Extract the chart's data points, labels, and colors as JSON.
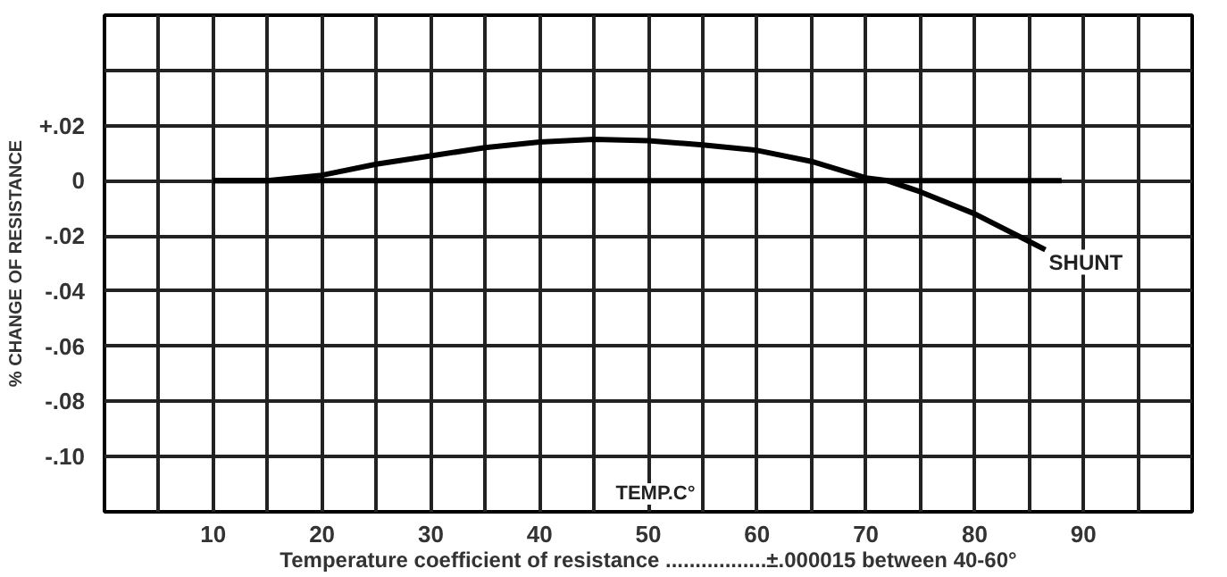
{
  "chart_data": {
    "type": "line",
    "xlabel": "Temperature coefficient of resistance .................±.000015 between 40-60°",
    "ylabel": "% CHANGE OF RESISTANCE",
    "xlim": [
      0,
      100
    ],
    "ylim": [
      -0.12,
      0.06
    ],
    "xticks": [
      {
        "value": 0,
        "label": null
      },
      {
        "value": 5,
        "label": null
      },
      10,
      {
        "value": 15,
        "label": null
      },
      20,
      {
        "value": 25,
        "label": null
      },
      30,
      {
        "value": 35,
        "label": null
      },
      40,
      {
        "value": 45,
        "label": null
      },
      50,
      {
        "value": 55,
        "label": null
      },
      60,
      {
        "value": 65,
        "label": null
      },
      70,
      {
        "value": 75,
        "label": null
      },
      80,
      {
        "value": 85,
        "label": null
      },
      90,
      {
        "value": 95,
        "label": null
      },
      {
        "value": 100,
        "label": null
      }
    ],
    "yticks": [
      {
        "value": -0.12,
        "label": null
      },
      {
        "value": -0.1,
        "label": "-.10"
      },
      {
        "value": -0.08,
        "label": "-.08"
      },
      {
        "value": -0.06,
        "label": "-.06"
      },
      {
        "value": -0.04,
        "label": "-.04"
      },
      {
        "value": -0.02,
        "label": "-.02"
      },
      0,
      {
        "value": 0.02,
        "label": "+.02"
      },
      {
        "value": 0.04,
        "label": null
      },
      {
        "value": 0.06,
        "label": null
      }
    ],
    "grid": true,
    "line_style": "solid",
    "marker": "none",
    "series": [
      {
        "color": "#000000",
        "x": [
          10,
          15,
          20,
          25,
          30,
          35,
          40,
          45,
          50,
          55,
          60,
          65,
          70,
          72,
          75,
          80,
          85,
          86.5
        ],
        "values": [
          0,
          0,
          0.002,
          0.006,
          0.009,
          0.012,
          0.014,
          0.015,
          0.0145,
          0.013,
          0.011,
          0.007,
          0.001,
          0,
          -0.004,
          -0.012,
          -0.022,
          -0.025
        ]
      },
      {
        "color": "#000000",
        "x": [
          10,
          88
        ],
        "values": [
          0,
          0
        ]
      }
    ],
    "annotations": [
      "TEMP.C°",
      {
        "text": "SHUNT",
        "x": 86.5,
        "y": -0.025
      }
    ]
  }
}
